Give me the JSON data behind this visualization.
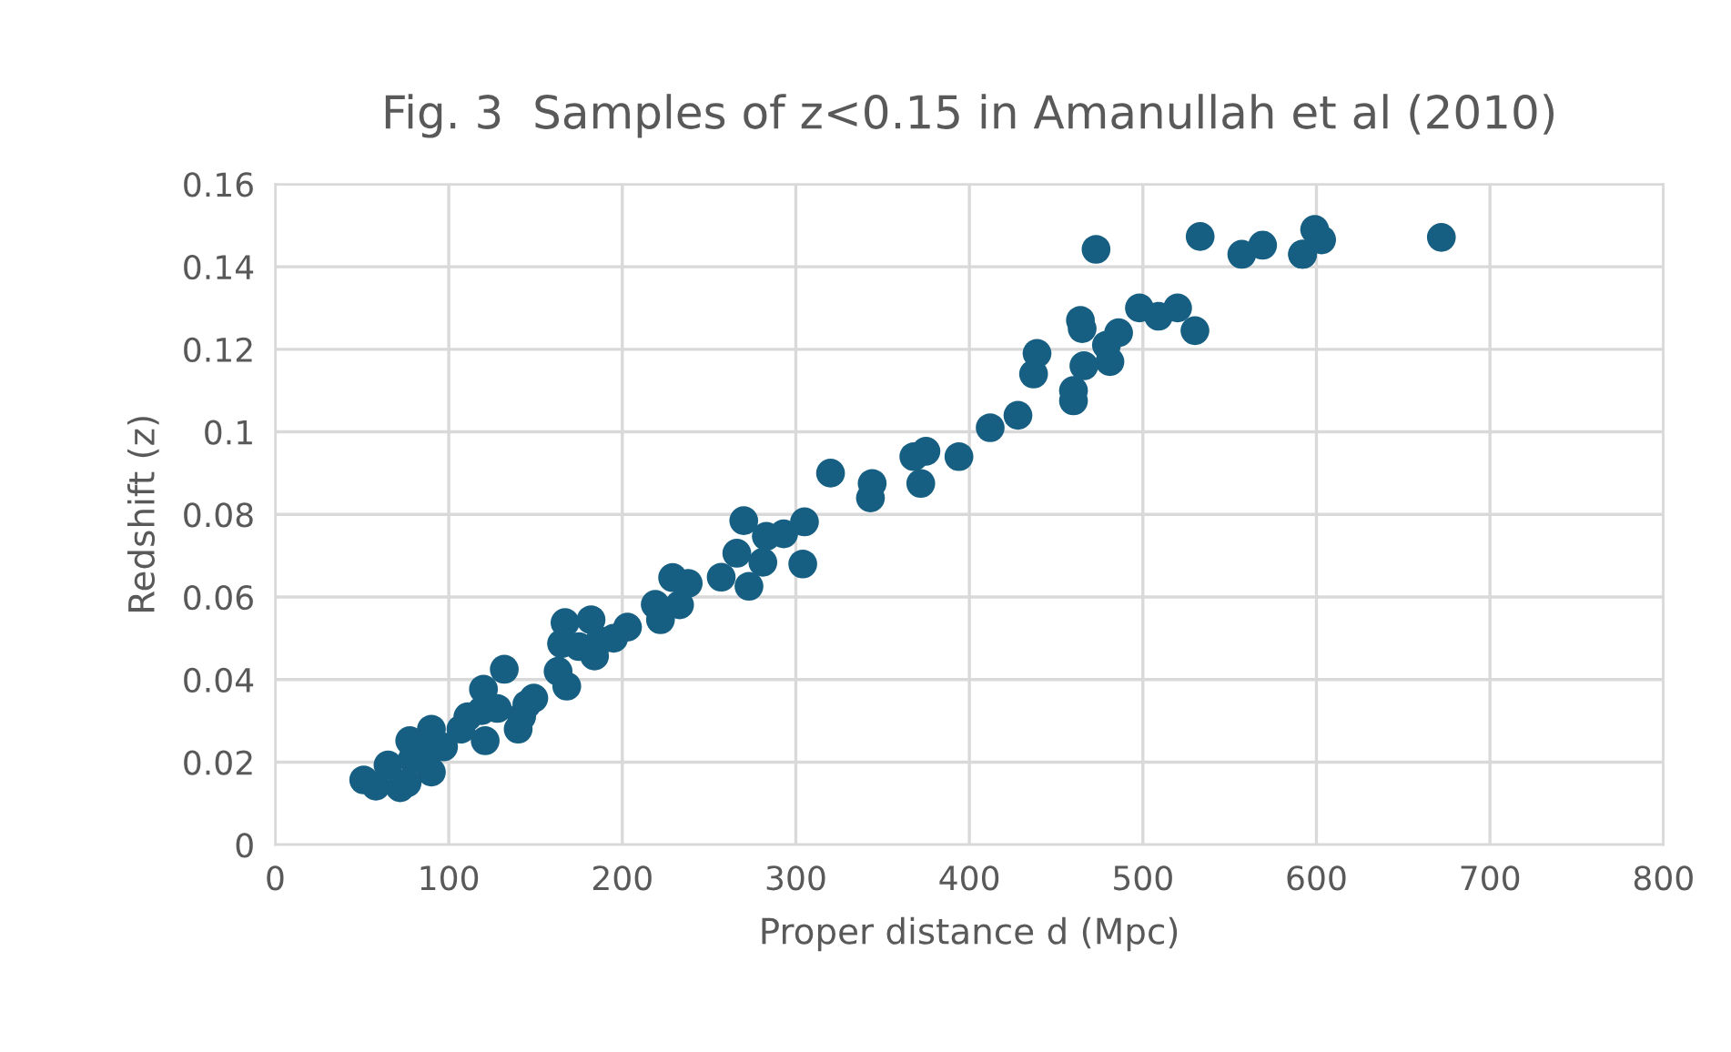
{
  "chart_data": {
    "type": "scatter",
    "title": "Fig. 3  Samples of z<0.15 in Amanullah et al (2010)",
    "xlabel": "Proper distance d (Mpc)",
    "ylabel": "Redshift (z)",
    "xlim": [
      0,
      800
    ],
    "xticks": [
      0,
      100,
      200,
      300,
      400,
      500,
      600,
      700,
      800
    ],
    "ylim": [
      0,
      0.16
    ],
    "yticks": [
      0,
      0.02,
      0.04,
      0.06,
      0.08,
      0.1,
      0.12,
      0.14,
      0.16
    ],
    "grid": true,
    "marker": "circle",
    "series": [
      {
        "color": "#175f82",
        "x": [
          473,
          533,
          557,
          569,
          592,
          599,
          603,
          592,
          672,
          498,
          509,
          520,
          530,
          486,
          479,
          481,
          466,
          464,
          465,
          439,
          437,
          460,
          460,
          428,
          412,
          394,
          375,
          368,
          372,
          344,
          343,
          320,
          305,
          304,
          293,
          283,
          270,
          281,
          266,
          273,
          257,
          238,
          233,
          229,
          219,
          222,
          203,
          182,
          187,
          184,
          167,
          165,
          163,
          168,
          149,
          142,
          140,
          132,
          120,
          121,
          119,
          107,
          90,
          90,
          77.5,
          79,
          65,
          51,
          58,
          72,
          76,
          97,
          111,
          128,
          145,
          175,
          195,
          85
        ],
        "values": [
          0.1442,
          0.1473,
          0.143,
          0.1452,
          0.143,
          0.149,
          0.1465,
          0.143,
          0.1471,
          0.13,
          0.128,
          0.13,
          0.1245,
          0.124,
          0.121,
          0.117,
          0.116,
          0.127,
          0.125,
          0.119,
          0.114,
          0.11,
          0.1075,
          0.104,
          0.101,
          0.094,
          0.0953,
          0.094,
          0.0875,
          0.0875,
          0.084,
          0.09,
          0.0782,
          0.068,
          0.0753,
          0.0747,
          0.0785,
          0.0684,
          0.0706,
          0.0626,
          0.0648,
          0.0633,
          0.0581,
          0.0647,
          0.0582,
          0.0545,
          0.0527,
          0.0545,
          0.0494,
          0.0457,
          0.0538,
          0.0487,
          0.042,
          0.0384,
          0.0355,
          0.031,
          0.028,
          0.0425,
          0.0377,
          0.0252,
          0.0325,
          0.028,
          0.028,
          0.0176,
          0.0252,
          0.0208,
          0.0193,
          0.0157,
          0.0142,
          0.0138,
          0.015,
          0.0237,
          0.031,
          0.033,
          0.034,
          0.048,
          0.05,
          0.022
        ]
      }
    ]
  }
}
